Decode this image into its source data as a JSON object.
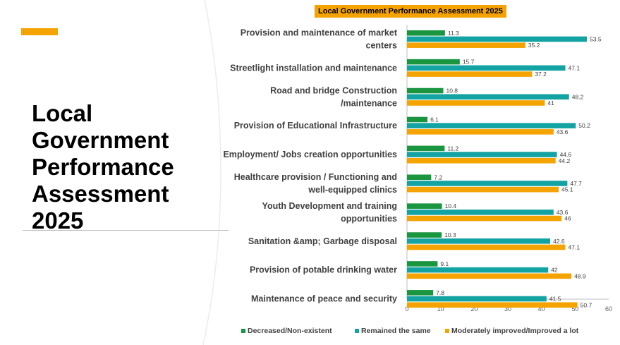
{
  "slide": {
    "title_lines": [
      "Local",
      "Government",
      "Performance",
      "Assessment",
      "2025"
    ],
    "accent_color": "#f5a300"
  },
  "chart_data": {
    "type": "bar",
    "orientation": "horizontal",
    "title": "Local Government Performance Assessment 2025",
    "categories": [
      "Provision and maintenance of market centers",
      "Streetlight installation and maintenance",
      "Road and bridge Construction /maintenance",
      "Provision of Educational Infrastructure",
      "Employment/ Jobs creation opportunities",
      "Healthcare provision / Functioning and well-equipped clinics",
      "Youth Development and  training opportunities",
      "Sanitation &amp; Garbage disposal",
      "Provision of potable drinking water",
      "Maintenance of peace and security"
    ],
    "category_lines": [
      [
        "Provision and maintenance of market",
        "centers"
      ],
      [
        "Streetlight installation and maintenance"
      ],
      [
        "Road and bridge Construction",
        "/maintenance"
      ],
      [
        "Provision of Educational Infrastructure"
      ],
      [
        "Employment/ Jobs creation opportunities"
      ],
      [
        "Healthcare provision / Functioning and",
        "well-equipped clinics"
      ],
      [
        "Youth Development and  training",
        "opportunities"
      ],
      [
        "Sanitation &amp; Garbage disposal"
      ],
      [
        "Provision of potable drinking water"
      ],
      [
        "Maintenance of peace and security"
      ]
    ],
    "series": [
      {
        "name": "Decreased/Non-existent",
        "color": "#1a9641",
        "values": [
          11.3,
          15.7,
          10.8,
          6.1,
          11.2,
          7.2,
          10.4,
          10.3,
          9.1,
          7.8
        ]
      },
      {
        "name": "Remained the same",
        "color": "#13a3a3",
        "values": [
          53.5,
          47.1,
          48.2,
          50.2,
          44.6,
          47.7,
          43.6,
          42.6,
          42,
          41.5
        ]
      },
      {
        "name": "Moderately improved/Improved a lot",
        "color": "#f5a300",
        "values": [
          35.2,
          37.2,
          41,
          43.6,
          44.2,
          45.1,
          46,
          47.1,
          48.9,
          50.7
        ]
      }
    ],
    "value_labels": [
      [
        "11.3",
        "15.7",
        "10.8",
        "6.1",
        "11.2",
        "7.2",
        "10.4",
        "10.3",
        "9.1",
        "7.8"
      ],
      [
        "53.5",
        "47.1",
        "48.2",
        "50.2",
        "44.6",
        "47.7",
        "43.6",
        "42.6",
        "42",
        "41.5"
      ],
      [
        "35.2",
        "37.2",
        "41",
        "43.6",
        "44.2",
        "45.1",
        "46",
        "47.1",
        "48.9",
        "50.7"
      ]
    ],
    "xlim": [
      0,
      60
    ],
    "xticks": [
      "0",
      "10",
      "20",
      "30",
      "40",
      "50",
      "60"
    ],
    "xlabel": "",
    "ylabel": "",
    "grid": false,
    "legend_position": "bottom"
  }
}
